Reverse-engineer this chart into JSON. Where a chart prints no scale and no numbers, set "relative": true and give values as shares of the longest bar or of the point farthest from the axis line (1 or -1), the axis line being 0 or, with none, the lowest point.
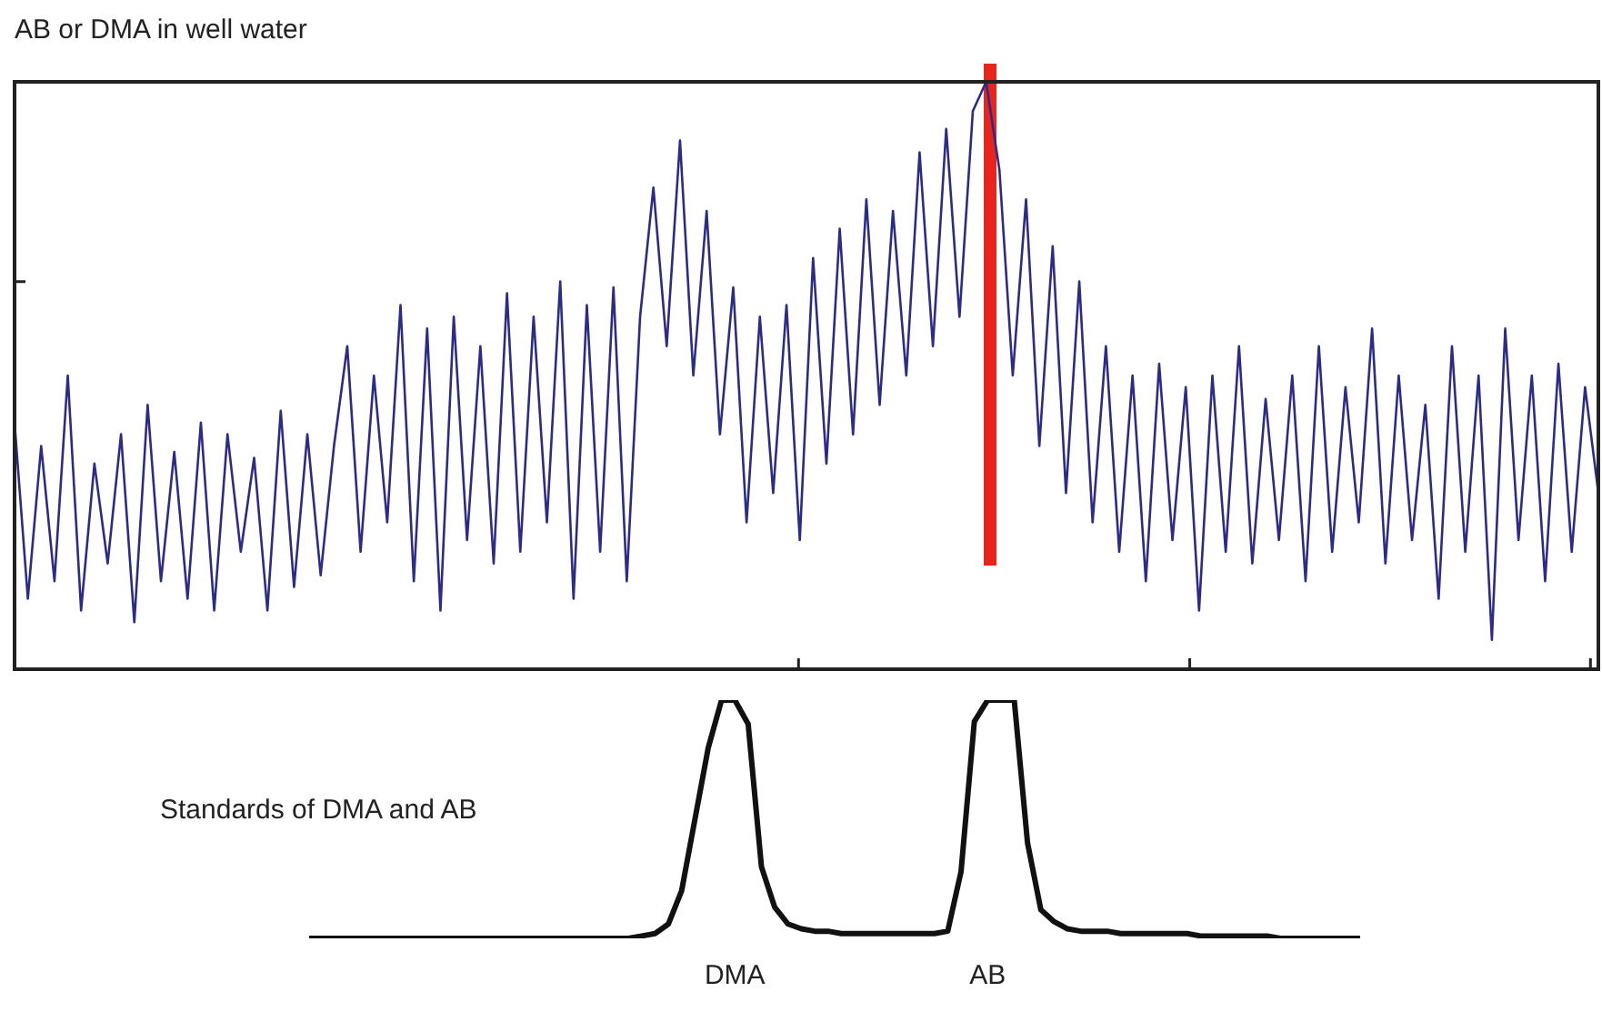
{
  "chart_data": [
    {
      "type": "line",
      "title": "AB or DMA in well water",
      "relative": true,
      "tick_labels": false,
      "categories": [
        null,
        null,
        null,
        null,
        null,
        null,
        null,
        null,
        null,
        null,
        null,
        null,
        null,
        null,
        null,
        null,
        null,
        null,
        null,
        null,
        null,
        null,
        null,
        null,
        null,
        null,
        null,
        null,
        null,
        null,
        null,
        null,
        null,
        null,
        null,
        null,
        null,
        null,
        null,
        null,
        null,
        null,
        null,
        null,
        null,
        null,
        null,
        null,
        null,
        null,
        null,
        null,
        null,
        null,
        null,
        null,
        null,
        null,
        null,
        null,
        null,
        null,
        null,
        null,
        null,
        null,
        null,
        null,
        null,
        null,
        null,
        null,
        null,
        null,
        null,
        null,
        null,
        null,
        null,
        null,
        null,
        null,
        null,
        null,
        null,
        null,
        null,
        null,
        null,
        null,
        null,
        null,
        null,
        null,
        null,
        null,
        null,
        null,
        null,
        null,
        null,
        null,
        null,
        null,
        null,
        null,
        null,
        null,
        null,
        null,
        null,
        null,
        null,
        null,
        null,
        null,
        null,
        null,
        null,
        null
      ],
      "series": [
        {
          "color": "#2b2b8c",
          "values": [
            0.42,
            0.12,
            0.38,
            0.15,
            0.5,
            0.1,
            0.35,
            0.18,
            0.4,
            0.08,
            0.45,
            0.15,
            0.37,
            0.12,
            0.42,
            0.1,
            0.4,
            0.2,
            0.36,
            0.1,
            0.44,
            0.14,
            0.4,
            0.16,
            0.38,
            0.55,
            0.2,
            0.5,
            0.25,
            0.62,
            0.15,
            0.58,
            0.1,
            0.6,
            0.22,
            0.55,
            0.18,
            0.64,
            0.2,
            0.6,
            0.25,
            0.66,
            0.12,
            0.62,
            0.2,
            0.65,
            0.15,
            0.6,
            0.82,
            0.55,
            0.9,
            0.5,
            0.78,
            0.4,
            0.65,
            0.25,
            0.6,
            0.3,
            0.62,
            0.22,
            0.7,
            0.35,
            0.75,
            0.4,
            0.8,
            0.45,
            0.78,
            0.5,
            0.88,
            0.55,
            0.92,
            0.6,
            0.95,
            1,
            0.85,
            0.5,
            0.8,
            0.38,
            0.72,
            0.3,
            0.66,
            0.25,
            0.55,
            0.2,
            0.5,
            0.15,
            0.52,
            0.22,
            0.48,
            0.1,
            0.5,
            0.2,
            0.55,
            0.18,
            0.46,
            0.22,
            0.5,
            0.15,
            0.55,
            0.2,
            0.48,
            0.25,
            0.58,
            0.18,
            0.5,
            0.22,
            0.45,
            0.12,
            0.55,
            0.2,
            0.5,
            0.05,
            0.58,
            0.22,
            0.5,
            0.15,
            0.52,
            0.2,
            0.48,
            0.3
          ]
        }
      ]
    },
    {
      "type": "line",
      "title": "Standards of DMA and AB",
      "relative": true,
      "tick_labels": "x",
      "categories": [
        null,
        null,
        null,
        null,
        null,
        null,
        null,
        null,
        null,
        null,
        null,
        null,
        null,
        null,
        null,
        null,
        null,
        null,
        null,
        null,
        null,
        null,
        null,
        null,
        null,
        null,
        null,
        null,
        null,
        null,
        null,
        null,
        "DMA",
        null,
        null,
        null,
        null,
        null,
        null,
        null,
        null,
        null,
        null,
        null,
        null,
        null,
        null,
        null,
        null,
        null,
        null,
        "AB",
        null,
        null,
        null,
        null,
        null,
        null,
        null,
        null,
        null,
        null,
        null,
        null,
        null,
        null,
        null,
        null,
        null,
        null,
        null,
        null,
        null,
        null,
        null,
        null,
        null,
        null,
        null,
        null
      ],
      "series": [
        {
          "color": "#111111",
          "values": [
            0,
            0,
            0,
            0,
            0,
            0,
            0,
            0,
            0,
            0,
            0,
            0,
            0,
            0,
            0,
            0,
            0,
            0,
            0,
            0,
            0,
            0,
            0,
            0,
            0,
            0.01,
            0.02,
            0.06,
            0.2,
            0.5,
            0.8,
            1,
            1,
            0.9,
            0.3,
            0.13,
            0.06,
            0.04,
            0.03,
            0.03,
            0.02,
            0.02,
            0.02,
            0.02,
            0.02,
            0.02,
            0.02,
            0.02,
            0.03,
            0.28,
            0.91,
            1,
            1,
            1,
            0.4,
            0.12,
            0.07,
            0.04,
            0.03,
            0.03,
            0.03,
            0.02,
            0.02,
            0.02,
            0.02,
            0.02,
            0.02,
            0.01,
            0.01,
            0.01,
            0.01,
            0.01,
            0.01,
            0,
            0,
            0,
            0,
            0,
            0,
            0
          ]
        }
      ]
    }
  ]
}
